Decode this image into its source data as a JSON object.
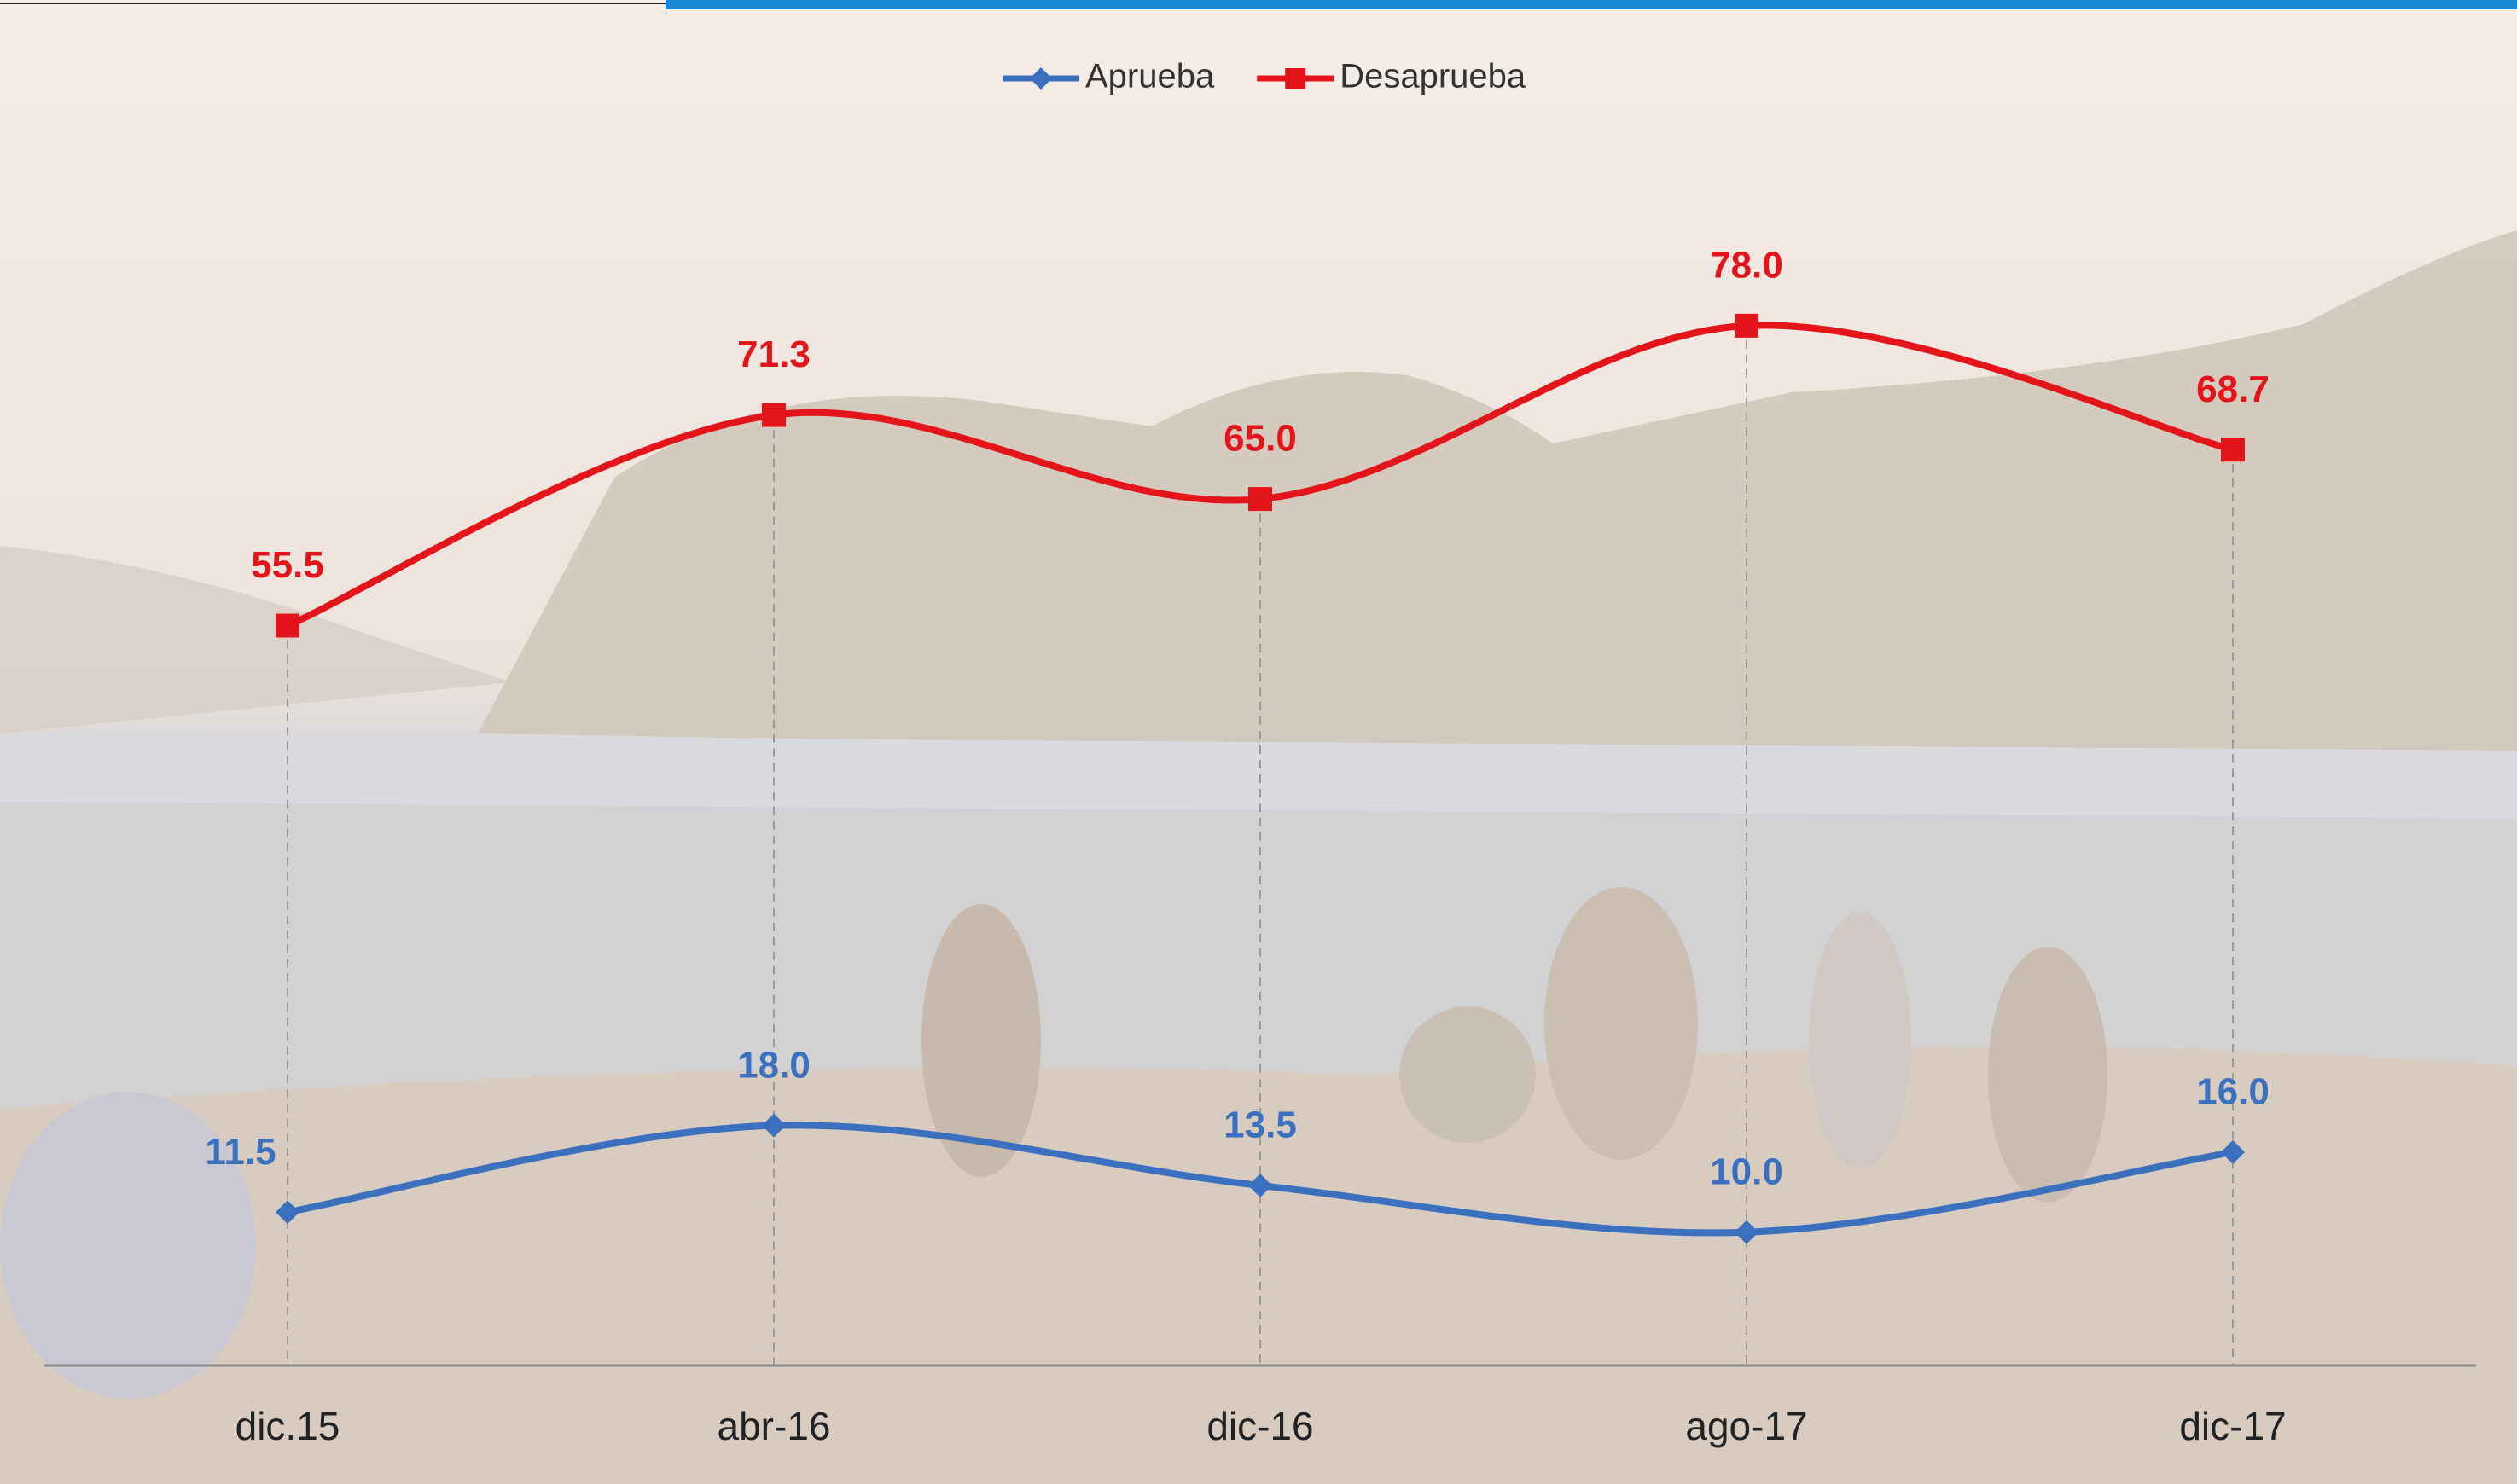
{
  "chart_data": {
    "type": "line",
    "categories": [
      "dic.15",
      "abr-16",
      "dic-16",
      "ago-17",
      "dic-17"
    ],
    "series": [
      {
        "name": "Aprueba",
        "color": "#3a70bd",
        "marker": "diamond",
        "values": [
          11.5,
          18.0,
          13.5,
          10.0,
          16.0
        ],
        "value_labels": [
          "11.5",
          "18.0",
          "13.5",
          "10.0",
          "16.0"
        ]
      },
      {
        "name": "Desaprueba",
        "color": "#e3151a",
        "marker": "square",
        "values": [
          55.5,
          71.3,
          65.0,
          78.0,
          68.7
        ],
        "value_labels": [
          "55.5",
          "71.3",
          "65.0",
          "78.0",
          "68.7"
        ]
      }
    ],
    "ylim": [
      0,
      100
    ],
    "smooth": true,
    "legend": "top"
  }
}
